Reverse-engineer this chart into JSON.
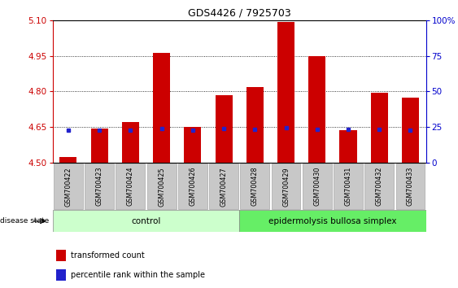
{
  "title": "GDS4426 / 7925703",
  "samples": [
    "GSM700422",
    "GSM700423",
    "GSM700424",
    "GSM700425",
    "GSM700426",
    "GSM700427",
    "GSM700428",
    "GSM700429",
    "GSM700430",
    "GSM700431",
    "GSM700432",
    "GSM700433"
  ],
  "red_values": [
    4.525,
    4.645,
    4.672,
    4.962,
    4.652,
    4.783,
    4.817,
    5.092,
    4.947,
    4.638,
    4.793,
    4.773
  ],
  "blue_values": [
    4.638,
    4.638,
    4.637,
    4.643,
    4.637,
    4.643,
    4.642,
    4.648,
    4.642,
    4.64,
    4.64,
    4.638
  ],
  "ylim_left": [
    4.5,
    5.1
  ],
  "ylim_right": [
    0,
    100
  ],
  "yticks_left": [
    4.5,
    4.65,
    4.8,
    4.95,
    5.1
  ],
  "yticks_right": [
    0,
    25,
    50,
    75,
    100
  ],
  "ytick_labels_right": [
    "0",
    "25",
    "50",
    "75",
    "100%"
  ],
  "bar_width": 0.55,
  "red_color": "#cc0000",
  "blue_color": "#2222cc",
  "baseline": 4.5,
  "n_control": 6,
  "n_total": 12,
  "control_label": "control",
  "disease_label": "epidermolysis bullosa simplex",
  "disease_state_label": "disease state",
  "legend_red": "transformed count",
  "legend_blue": "percentile rank within the sample",
  "control_color": "#ccffcc",
  "disease_color": "#66ee66",
  "tick_bg_color": "#c8c8c8",
  "grid_color": "#000000",
  "left_axis_color": "#cc0000",
  "right_axis_color": "#0000cc",
  "fig_bg": "#ffffff"
}
